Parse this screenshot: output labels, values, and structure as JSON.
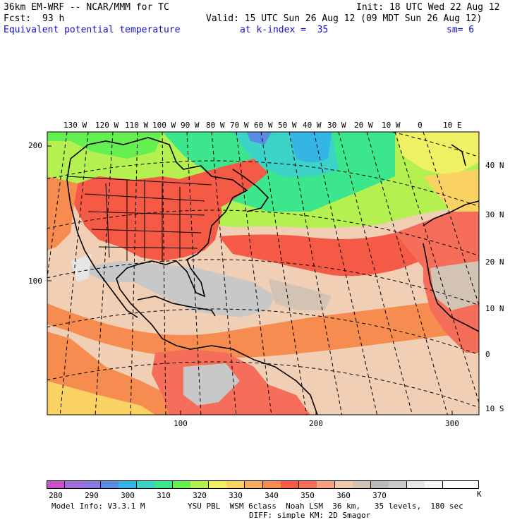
{
  "header": {
    "model_title": "36km EM-WRF -- NCAR/MMM for TC",
    "init": "Init: 18 UTC Wed 22 Aug 12",
    "fcst_label": "Fcst:",
    "fcst_hours": "93 h",
    "valid": "Valid: 15 UTC Sun 26 Aug 12 (09 MDT Sun 26 Aug 12)",
    "field": "Equivalent potential temperature",
    "level": "at k-index =  35",
    "smoothing": "sm= 6"
  },
  "map": {
    "top_longitude_labels": [
      "130 W",
      "120 W",
      "110 W",
      "100 W",
      "90 W",
      "80 W",
      "70 W",
      "60 W",
      "50 W",
      "40 W",
      "30 W",
      "20 W",
      "10 W",
      "0",
      "10 E"
    ],
    "right_latitude_labels": [
      "40 N",
      "30 N",
      "20 N",
      "10 N",
      "0",
      "10 S"
    ],
    "left_grid_labels": [
      "200",
      "100"
    ],
    "bottom_grid_labels": [
      "100",
      "200",
      "300"
    ]
  },
  "colorbar": {
    "unit": "K",
    "tick_labels": [
      "280",
      "290",
      "300",
      "310",
      "320",
      "330",
      "340",
      "350",
      "360",
      "370"
    ],
    "colors": [
      "#c850c8",
      "#a070d8",
      "#8c78e0",
      "#5a8ce6",
      "#35b4e6",
      "#3cd2c8",
      "#3ce68c",
      "#64f050",
      "#b4f050",
      "#f0f064",
      "#fad264",
      "#f7ab5e",
      "#f78c50",
      "#f55a46",
      "#f56e5a",
      "#f7a082",
      "#f0c8aa",
      "#d2c3b4",
      "#bcb9b4",
      "#c8c8c8",
      "#e6e6e6",
      "#f5f5f5",
      "#ffffff",
      "#ffffff"
    ]
  },
  "footer": {
    "model_info": "Model Info: V3.3.1 M",
    "physics": "YSU PBL  WSM 6class  Noah LSM  36 km,   35 levels,  180 sec",
    "diffusion": "DIFF: simple KM: 2D Smagor"
  }
}
